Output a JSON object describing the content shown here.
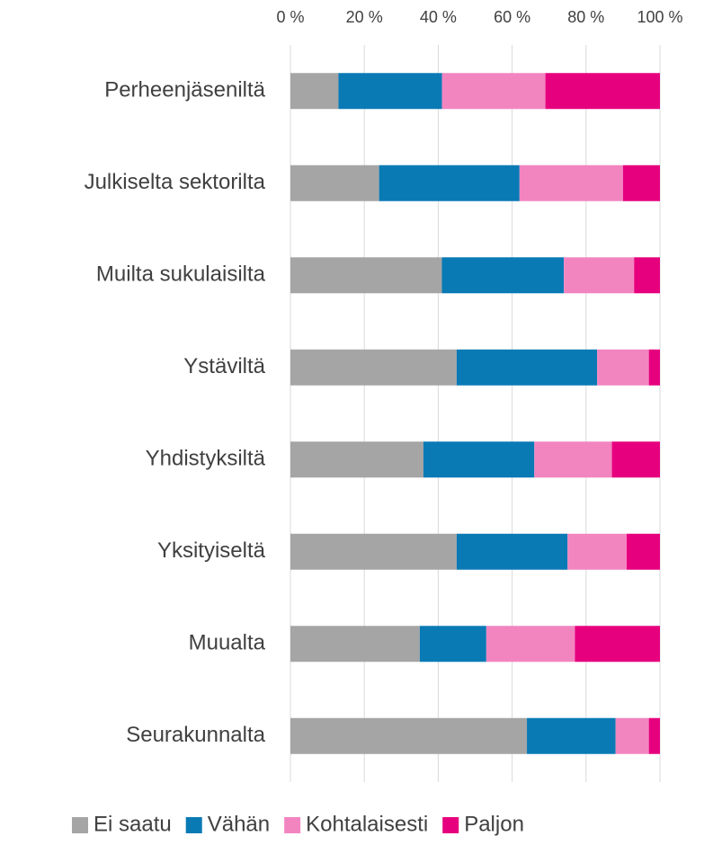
{
  "chart_data": {
    "type": "stacked_barh",
    "categories": [
      "Perheenjäseniltä",
      "Julkiselta sektorilta",
      "Muilta sukulaisilta",
      "Ystäviltä",
      "Yhdistyksiltä",
      "Yksityiseltä",
      "Muualta",
      "Seurakunnalta"
    ],
    "series": [
      {
        "name": "Ei saatu",
        "color": "#a5a5a5",
        "values": [
          13,
          24,
          41,
          45,
          36,
          45,
          35,
          64
        ]
      },
      {
        "name": "Vähän",
        "color": "#0a7ab5",
        "values": [
          28,
          38,
          33,
          38,
          30,
          30,
          18,
          24
        ]
      },
      {
        "name": "Kohtalaisesti",
        "color": "#f285c0",
        "values": [
          28,
          28,
          19,
          14,
          21,
          16,
          24,
          9
        ]
      },
      {
        "name": "Paljon",
        "color": "#e6007e",
        "values": [
          31,
          10,
          7,
          3,
          13,
          9,
          23,
          3
        ]
      }
    ],
    "xlim": [
      0,
      100
    ],
    "xticks": [
      {
        "value": 0,
        "label": "0 %"
      },
      {
        "value": 20,
        "label": "20 %"
      },
      {
        "value": 40,
        "label": "40 %"
      },
      {
        "value": 60,
        "label": "60 %"
      },
      {
        "value": 80,
        "label": "80 %"
      },
      {
        "value": 100,
        "label": "100 %"
      }
    ],
    "grid": true,
    "legend": "bottom"
  }
}
